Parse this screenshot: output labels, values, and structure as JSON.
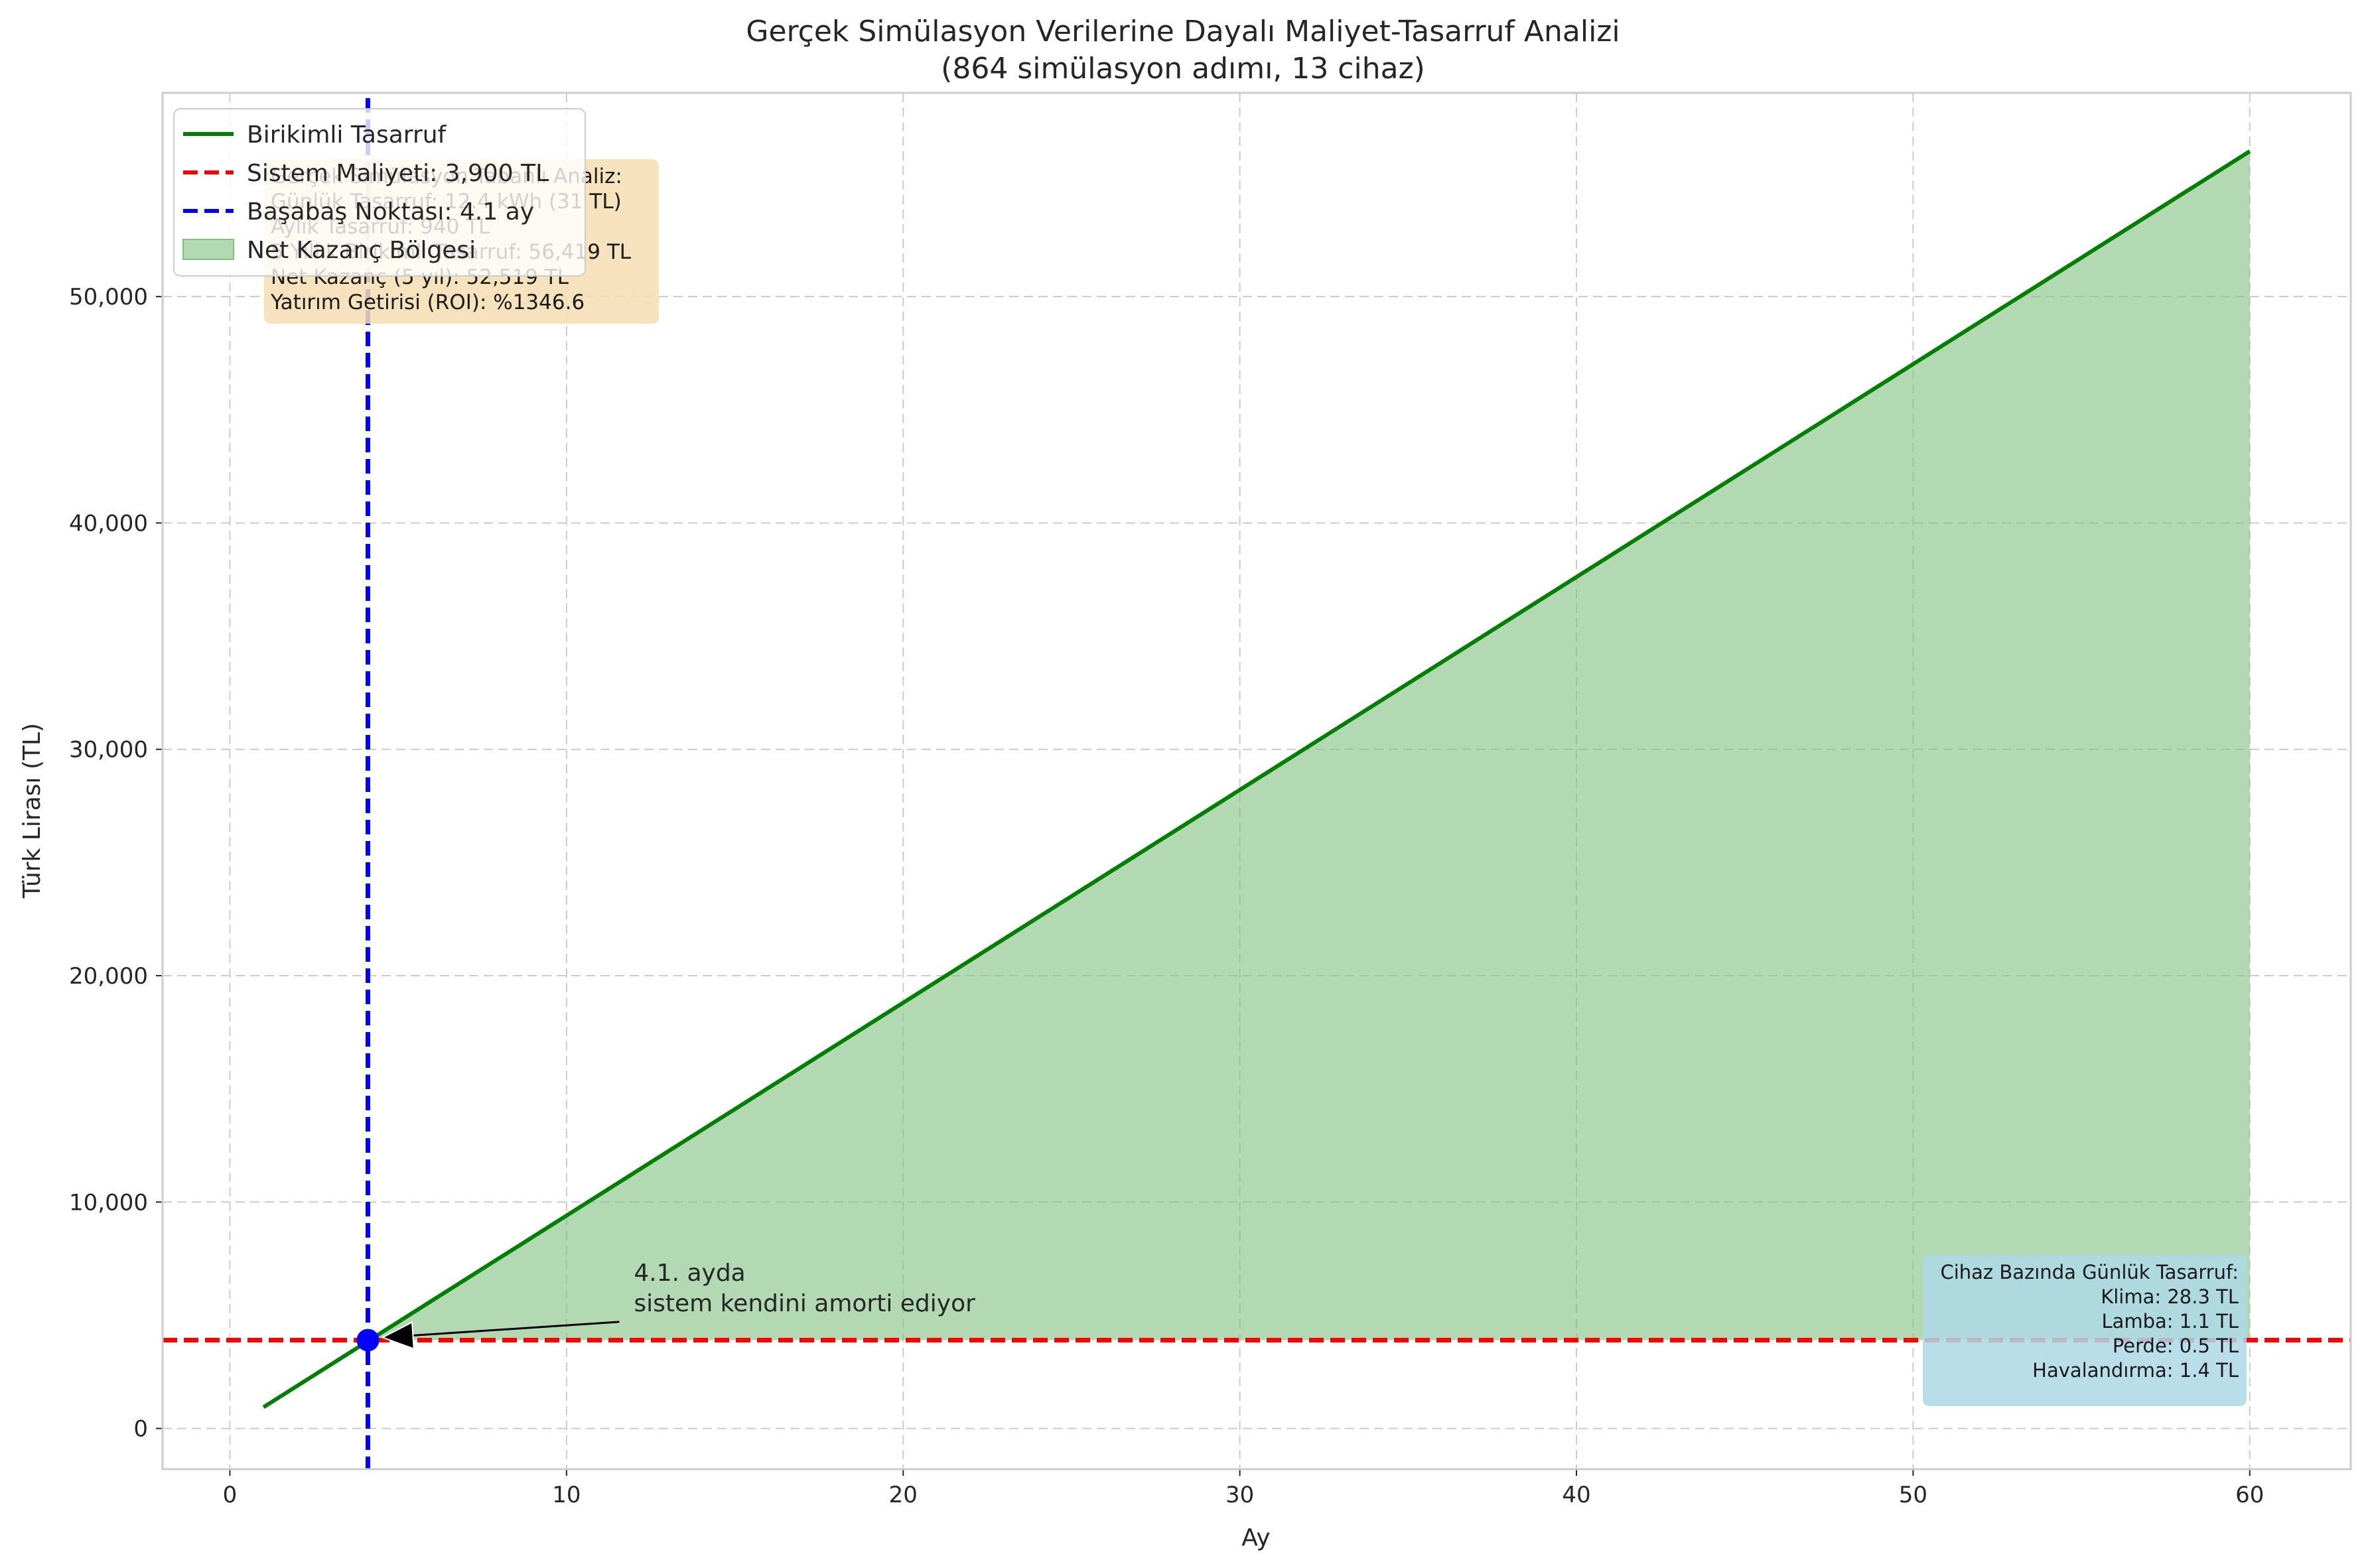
{
  "chart_data": {
    "type": "line",
    "title": "Gerçek Simülasyon Verilerine Dayalı Maliyet-Tasarruf Analizi",
    "subtitle": "(864 simülasyon adımı, 13 cihaz)",
    "xlabel": "Ay",
    "ylabel": "Türk Lirası (TL)",
    "xlim": [
      -2,
      63
    ],
    "ylim": [
      -1800,
      59000
    ],
    "xticks": [
      0,
      10,
      20,
      30,
      40,
      50,
      60
    ],
    "yticks": [
      0,
      10000,
      20000,
      30000,
      40000,
      50000
    ],
    "ytick_labels": [
      "0",
      "10,000",
      "20,000",
      "30,000",
      "40,000",
      "50,000"
    ],
    "grid": true,
    "series": [
      {
        "name": "Birikimli Tasarruf",
        "x": [
          1,
          60
        ],
        "y": [
          940,
          56419
        ],
        "color": "#007f00"
      }
    ],
    "hlines": [
      {
        "name": "Sistem Maliyeti: 3,900 TL",
        "y": 3900,
        "color": "#ff0000"
      }
    ],
    "vlines": [
      {
        "name": "Başabaş Noktası: 4.1 ay",
        "x": 4.1,
        "color": "#0000ff"
      }
    ],
    "fill_region": {
      "name": "Net Kazanç Bölgesi",
      "color": "#7fbf7f",
      "x_from": 4.1,
      "x_to": 60,
      "lower": 3900
    },
    "breakeven_point": {
      "x": 4.1,
      "y": 3900
    },
    "annotation": {
      "lines": [
        "4.1. ayda",
        "sistem kendini amorti ediyor"
      ],
      "text_x": 12,
      "text_y": 5000
    },
    "legend_position": "upper-left",
    "info_box": {
      "lines": [
        "Gerçek Simülasyon Tabanlı Analiz:",
        "Günlük Tasarruf: 12.4 kWh (31 TL)",
        "Aylık Tasarruf: 940 TL",
        "5 Yıllık Birikimli Tasarruf: 56,419 TL",
        "Net Kazanç (5 yıl): 52,519 TL",
        "Yatırım Getirisi (ROI): %1346.6"
      ]
    },
    "device_box": {
      "lines": [
        "Cihaz Bazında Günlük Tasarruf:",
        "Klima: 28.3 TL",
        "Lamba: 1.1 TL",
        "Perde: 0.5 TL",
        "Havalandırma: 1.4 TL"
      ]
    },
    "colors": {
      "line": "#007f00",
      "fill": "#7fbf7f",
      "cost": "#ff0000",
      "breakeven": "#0000ff",
      "info_bg": "#f5deb3",
      "device_bg": "#add8e6",
      "grid": "#cccccc"
    }
  }
}
